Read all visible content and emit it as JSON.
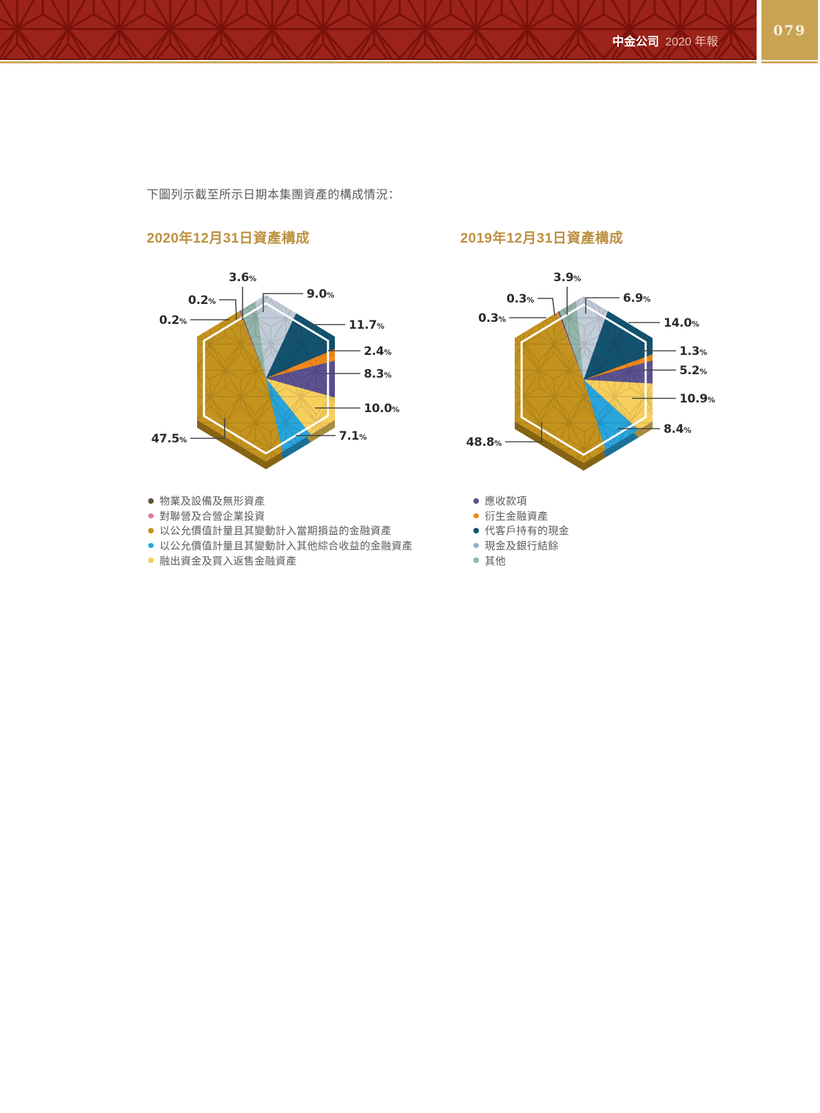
{
  "header": {
    "company": "中金公司",
    "report": "2020 年報",
    "page_number": "079",
    "band_color": "#9B231B",
    "accent_gold": "#C9A254"
  },
  "intro_text": "下圖列示截至所示日期本集團資產的構成情況：",
  "categories": {
    "property": {
      "label": "物業及設備及無形資產",
      "color": "#5E5433"
    },
    "jv": {
      "label": "對聯營及合營企業投資",
      "color": "#DE7E92"
    },
    "fvtpl": {
      "label": "以公允價值計量且其變動計入當期損益的金融資產",
      "color": "#C4931E"
    },
    "fvoci": {
      "label": "以公允價值計量且其變動計入其他綜合收益的金融資產",
      "color": "#29A5DB"
    },
    "margin": {
      "label": "融出資金及買入返售金融資產",
      "color": "#F7CF5D"
    },
    "receivables": {
      "label": "應收款項",
      "color": "#5C5191"
    },
    "derivatives": {
      "label": "衍生金融資產",
      "color": "#F1891C"
    },
    "client_cash": {
      "label": "代客戶持有的現金",
      "color": "#14536F"
    },
    "cash_bank": {
      "label": "現金及銀行結餘",
      "color": "#C1CCD8",
      "dot_color": "#9AABBA"
    },
    "others": {
      "label": "其他",
      "color": "#93B5AA"
    }
  },
  "chart_data": [
    {
      "type": "pie",
      "title": "2020年12月31日資產構成",
      "value_unit": "%",
      "start_angle_deg": -20.5,
      "segments_clockwise": [
        {
          "category": "others",
          "value": 3.6
        },
        {
          "category": "cash_bank",
          "value": 9.0
        },
        {
          "category": "client_cash",
          "value": 11.7
        },
        {
          "category": "derivatives",
          "value": 2.4
        },
        {
          "category": "receivables",
          "value": 8.3
        },
        {
          "category": "margin",
          "value": 10.0
        },
        {
          "category": "fvoci",
          "value": 7.1
        },
        {
          "category": "fvtpl",
          "value": 47.5
        },
        {
          "category": "jv",
          "value": 0.2
        },
        {
          "category": "property",
          "value": 0.2
        }
      ],
      "legend_categories": [
        "property",
        "jv",
        "fvtpl",
        "fvoci",
        "margin"
      ]
    },
    {
      "type": "pie",
      "title": "2019年12月31日資產構成",
      "value_unit": "%",
      "start_angle_deg": -19.5,
      "segments_clockwise": [
        {
          "category": "others",
          "value": 3.9
        },
        {
          "category": "cash_bank",
          "value": 6.9
        },
        {
          "category": "client_cash",
          "value": 14.0
        },
        {
          "category": "derivatives",
          "value": 1.3
        },
        {
          "category": "receivables",
          "value": 5.2
        },
        {
          "category": "margin",
          "value": 10.9
        },
        {
          "category": "fvoci",
          "value": 8.4
        },
        {
          "category": "fvtpl",
          "value": 48.8
        },
        {
          "category": "jv",
          "value": 0.3
        },
        {
          "category": "property",
          "value": 0.3
        }
      ],
      "legend_categories": [
        "receivables",
        "derivatives",
        "client_cash",
        "cash_bank",
        "others"
      ]
    }
  ]
}
